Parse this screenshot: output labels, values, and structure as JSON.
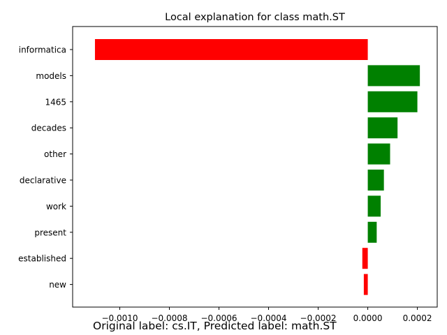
{
  "chart_data": {
    "type": "bar",
    "orientation": "horizontal",
    "title": "Local explanation for class math.ST",
    "categories": [
      "informatica",
      "models",
      "1465",
      "decades",
      "other",
      "declarative",
      "work",
      "present",
      "established",
      "new"
    ],
    "values": [
      -0.0011,
      0.00021,
      0.0002,
      0.00012,
      9e-05,
      6.5e-05,
      5.2e-05,
      3.6e-05,
      -2.2e-05,
      -1.6e-05
    ],
    "colors": {
      "positive": "#008000",
      "negative": "#ff0000"
    },
    "xlim": [
      -0.00119,
      0.00028
    ],
    "xticks": [
      -0.001,
      -0.0008,
      -0.0006,
      -0.0004,
      -0.0002,
      0.0,
      0.0002
    ],
    "xtick_labels": [
      "−0.0010",
      "−0.0008",
      "−0.0006",
      "−0.0004",
      "−0.0002",
      "0.0000",
      "0.0002"
    ],
    "xlabel": "",
    "ylabel": "",
    "grid": false,
    "legend": "none"
  },
  "caption": "Original label: cs.IT, Predicted label: math.ST"
}
